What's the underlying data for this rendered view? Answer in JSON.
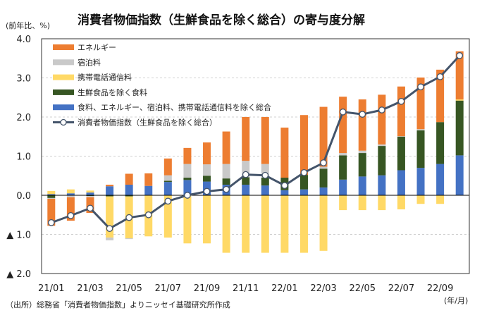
{
  "chart_data": {
    "type": "bar",
    "stacked": true,
    "title": "消費者物価指数（生鮮食品を除く総合）の寄与度分解",
    "ylabel": "(前年比、%)",
    "xlabel": "(年/月)",
    "ylim": [
      -2.0,
      4.0
    ],
    "yticks": [
      4.0,
      3.0,
      2.0,
      1.0,
      0.0,
      -1.0,
      -2.0
    ],
    "ytick_labels": [
      "4.0",
      "3.0",
      "2.0",
      "1.0",
      "0.0",
      "▲ 1.0",
      "▲ 2.0"
    ],
    "grid": true,
    "legend_position": "top-left",
    "categories": [
      "21/01",
      "21/02",
      "21/03",
      "21/04",
      "21/05",
      "21/06",
      "21/07",
      "21/08",
      "21/09",
      "21/10",
      "21/11",
      "21/12",
      "22/01",
      "22/02",
      "22/03",
      "22/04",
      "22/05",
      "22/06",
      "22/07",
      "22/08",
      "22/09",
      "22/10"
    ],
    "xtick_labels": [
      "21/01",
      "",
      "21/03",
      "",
      "21/05",
      "",
      "21/07",
      "",
      "21/09",
      "",
      "21/11",
      "",
      "22/01",
      "",
      "22/03",
      "",
      "22/05",
      "",
      "22/07",
      "",
      "22/09",
      ""
    ],
    "series": [
      {
        "name": "食料、エネルギー、宿泊料、携帯電話通信料を除く総合",
        "color": "#4472C4",
        "values": [
          0.03,
          0.05,
          0.07,
          0.23,
          0.27,
          0.24,
          0.34,
          0.39,
          0.35,
          0.27,
          0.27,
          0.25,
          0.13,
          0.15,
          0.2,
          0.4,
          0.48,
          0.51,
          0.64,
          0.7,
          0.8,
          1.02
        ]
      },
      {
        "name": "生鮮食品を除く食料",
        "color": "#375623",
        "values": [
          -0.07,
          0.0,
          -0.02,
          -0.03,
          -0.03,
          0.0,
          0.03,
          0.06,
          0.15,
          0.16,
          0.19,
          0.2,
          0.32,
          0.37,
          0.48,
          0.62,
          0.6,
          0.75,
          0.86,
          0.96,
          1.07,
          1.4
        ]
      },
      {
        "name": "携帯電話通信料",
        "color": "#FFD966",
        "values": [
          0.08,
          0.1,
          0.05,
          -1.05,
          -1.07,
          -1.05,
          -1.08,
          -1.23,
          -1.23,
          -1.47,
          -1.47,
          -1.47,
          -1.47,
          -1.47,
          -1.42,
          -0.38,
          -0.38,
          -0.38,
          -0.36,
          -0.22,
          -0.22,
          0.03
        ]
      },
      {
        "name": "宿泊料",
        "color": "#C9C9C9",
        "values": [
          -0.02,
          -0.05,
          -0.03,
          -0.07,
          -0.02,
          0.0,
          0.14,
          0.35,
          0.29,
          0.37,
          0.42,
          0.35,
          0.0,
          0.0,
          0.05,
          0.06,
          0.06,
          0.04,
          0.01,
          0.03,
          0.0,
          0.0
        ]
      },
      {
        "name": "エネルギー",
        "color": "#ED7D31",
        "values": [
          -0.69,
          -0.6,
          -0.4,
          0.04,
          0.28,
          0.32,
          0.43,
          0.41,
          0.56,
          0.83,
          1.12,
          1.2,
          1.28,
          1.53,
          1.53,
          1.44,
          1.31,
          1.27,
          1.27,
          1.32,
          1.34,
          1.23
        ]
      }
    ],
    "line": {
      "name": "消費者物価指数（生鮮食品を除く総合）",
      "color": "#44546A",
      "values": [
        -0.7,
        -0.52,
        -0.33,
        -0.85,
        -0.57,
        -0.5,
        -0.15,
        0.0,
        0.1,
        0.15,
        0.53,
        0.51,
        0.25,
        0.58,
        0.83,
        2.13,
        2.07,
        2.18,
        2.4,
        2.77,
        3.03,
        3.57
      ]
    },
    "legend_order": [
      "エネルギー",
      "宿泊料",
      "携帯電話通信料",
      "生鮮食品を除く食料",
      "食料、エネルギー、宿泊料、携帯電話通信料を除く総合",
      "消費者物価指数（生鮮食品を除く総合）"
    ],
    "source": "（出所）総務省「消費者物価指数」よりニッセイ基礎研究所作成"
  }
}
